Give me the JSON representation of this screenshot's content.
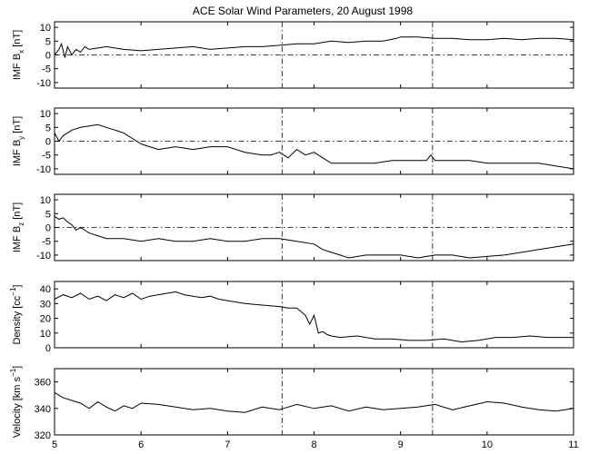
{
  "figure": {
    "title": "ACE Solar Wind Parameters, 20 August 1998",
    "x_ticks": [
      5,
      6,
      7,
      8,
      9,
      10,
      11
    ]
  },
  "chart_data": [
    {
      "type": "line",
      "ylabel": "IMF B_x [nT]",
      "ylabel_main": "IMF B",
      "ylabel_sub": "x",
      "ylabel_tail": " [nT]",
      "xlim": [
        5,
        11
      ],
      "ylim": [
        -12,
        12
      ],
      "yticks": [
        -10,
        -5,
        0,
        5,
        10
      ],
      "zero_line": 0,
      "vlines": [
        7.63,
        9.37
      ],
      "series": [
        {
          "x": [
            5.0,
            5.05,
            5.08,
            5.12,
            5.15,
            5.2,
            5.25,
            5.3,
            5.35,
            5.4,
            5.5,
            5.6,
            5.8,
            6.0,
            6.2,
            6.4,
            6.6,
            6.8,
            7.0,
            7.2,
            7.4,
            7.6,
            7.8,
            8.0,
            8.2,
            8.4,
            8.6,
            8.8,
            8.95,
            9.0,
            9.2,
            9.4,
            9.6,
            9.8,
            10.0,
            10.2,
            10.4,
            10.6,
            10.8,
            11.0
          ],
          "y": [
            0,
            2,
            4,
            -1,
            3,
            0,
            2,
            1,
            3,
            2,
            2.5,
            3,
            2,
            1.5,
            2,
            2.5,
            3,
            2,
            2.5,
            3,
            3,
            3.5,
            4,
            4,
            5,
            4.5,
            5,
            5,
            6,
            6.5,
            6.5,
            6,
            6,
            5.5,
            5.5,
            6,
            5.5,
            6,
            6,
            5.5
          ]
        }
      ]
    },
    {
      "type": "line",
      "ylabel": "IMF B_y [nT]",
      "ylabel_main": "IMF B",
      "ylabel_sub": "y",
      "ylabel_tail": " [nT]",
      "xlim": [
        5,
        11
      ],
      "ylim": [
        -12,
        12
      ],
      "yticks": [
        -10,
        -5,
        0,
        5,
        10
      ],
      "zero_line": 0,
      "vlines": [
        7.63,
        9.37
      ],
      "series": [
        {
          "x": [
            5.0,
            5.05,
            5.1,
            5.2,
            5.3,
            5.4,
            5.5,
            5.6,
            5.7,
            5.8,
            5.9,
            6.0,
            6.1,
            6.2,
            6.4,
            6.6,
            6.8,
            7.0,
            7.2,
            7.4,
            7.5,
            7.6,
            7.7,
            7.8,
            7.9,
            8.0,
            8.1,
            8.2,
            8.3,
            8.5,
            8.7,
            8.9,
            9.1,
            9.3,
            9.35,
            9.4,
            9.6,
            9.8,
            10.0,
            10.2,
            10.4,
            10.6,
            10.8,
            11.0
          ],
          "y": [
            3,
            0,
            2,
            4,
            5,
            5.5,
            6,
            5,
            4,
            3,
            1,
            -1,
            -2,
            -3,
            -2,
            -3,
            -2,
            -2,
            -4,
            -5,
            -5,
            -4,
            -6,
            -3,
            -5,
            -4,
            -6,
            -8,
            -8,
            -8,
            -8,
            -7,
            -7,
            -7,
            -5,
            -7,
            -7,
            -7,
            -8,
            -8,
            -8,
            -8,
            -9,
            -10
          ]
        }
      ]
    },
    {
      "type": "line",
      "ylabel": "IMF B_z [nT]",
      "ylabel_main": "IMF B",
      "ylabel_sub": "z",
      "ylabel_tail": " [nT]",
      "xlim": [
        5,
        11
      ],
      "ylim": [
        -12,
        12
      ],
      "yticks": [
        -10,
        -5,
        0,
        5,
        10
      ],
      "zero_line": 0,
      "vlines": [
        7.63,
        9.37
      ],
      "series": [
        {
          "x": [
            5.0,
            5.05,
            5.1,
            5.15,
            5.2,
            5.25,
            5.3,
            5.35,
            5.4,
            5.5,
            5.6,
            5.8,
            6.0,
            6.2,
            6.4,
            6.6,
            6.8,
            7.0,
            7.2,
            7.4,
            7.6,
            7.8,
            8.0,
            8.1,
            8.2,
            8.3,
            8.4,
            8.6,
            8.8,
            9.0,
            9.2,
            9.4,
            9.6,
            9.8,
            10.0,
            10.2,
            10.4,
            10.6,
            10.8,
            11.0
          ],
          "y": [
            4,
            3,
            3.5,
            2,
            1,
            -1,
            0,
            -1,
            -2,
            -3,
            -4,
            -4,
            -5,
            -4,
            -5,
            -5,
            -4,
            -5,
            -5,
            -4,
            -4,
            -5,
            -6,
            -8,
            -9,
            -10,
            -11,
            -10,
            -10,
            -10,
            -11,
            -10,
            -10,
            -11,
            -10.5,
            -10,
            -9,
            -8,
            -7,
            -6
          ]
        }
      ]
    },
    {
      "type": "line",
      "ylabel": "Density [cc^-1]",
      "ylabel_main": "Density [cc",
      "ylabel_sup": "−1",
      "ylabel_tail": "]",
      "xlim": [
        5,
        11
      ],
      "ylim": [
        0,
        45
      ],
      "yticks": [
        0,
        10,
        20,
        30,
        40
      ],
      "zero_line": null,
      "vlines": [
        7.63,
        9.37
      ],
      "series": [
        {
          "x": [
            5.0,
            5.1,
            5.2,
            5.3,
            5.4,
            5.5,
            5.6,
            5.7,
            5.8,
            5.9,
            6.0,
            6.1,
            6.2,
            6.3,
            6.4,
            6.5,
            6.6,
            6.7,
            6.8,
            6.9,
            7.0,
            7.2,
            7.4,
            7.6,
            7.7,
            7.8,
            7.9,
            7.95,
            8.0,
            8.05,
            8.1,
            8.15,
            8.2,
            8.3,
            8.5,
            8.7,
            8.9,
            9.1,
            9.3,
            9.5,
            9.7,
            9.9,
            10.1,
            10.3,
            10.5,
            10.7,
            10.9,
            11.0
          ],
          "y": [
            33,
            36,
            34,
            37,
            33,
            35,
            32,
            36,
            34,
            37,
            33,
            35,
            36,
            37,
            38,
            36,
            35,
            34,
            35,
            33,
            32,
            30,
            29,
            28,
            27,
            27,
            22,
            16,
            22,
            10,
            11,
            9,
            8,
            7,
            8,
            6,
            6,
            5,
            5,
            6,
            4,
            5,
            7,
            7,
            8,
            7,
            7,
            7
          ]
        }
      ]
    },
    {
      "type": "line",
      "ylabel": "Velocity [km s^-1]",
      "ylabel_main": "Velocity [km s",
      "ylabel_sup": "−1",
      "ylabel_tail": "]",
      "xlim": [
        5,
        11
      ],
      "ylim": [
        320,
        370
      ],
      "yticks": [
        320,
        340,
        360
      ],
      "zero_line": null,
      "vlines": [
        7.63,
        9.37
      ],
      "series": [
        {
          "x": [
            5.0,
            5.1,
            5.2,
            5.3,
            5.4,
            5.5,
            5.6,
            5.7,
            5.8,
            5.9,
            6.0,
            6.2,
            6.4,
            6.6,
            6.8,
            7.0,
            7.2,
            7.4,
            7.6,
            7.8,
            8.0,
            8.2,
            8.4,
            8.6,
            8.8,
            9.0,
            9.2,
            9.4,
            9.6,
            9.8,
            10.0,
            10.2,
            10.4,
            10.6,
            10.8,
            11.0
          ],
          "y": [
            352,
            348,
            346,
            344,
            340,
            345,
            341,
            338,
            342,
            340,
            344,
            343,
            341,
            339,
            340,
            338,
            337,
            341,
            339,
            343,
            340,
            342,
            338,
            341,
            339,
            340,
            341,
            343,
            339,
            342,
            345,
            344,
            341,
            339,
            338,
            340
          ]
        }
      ]
    }
  ]
}
